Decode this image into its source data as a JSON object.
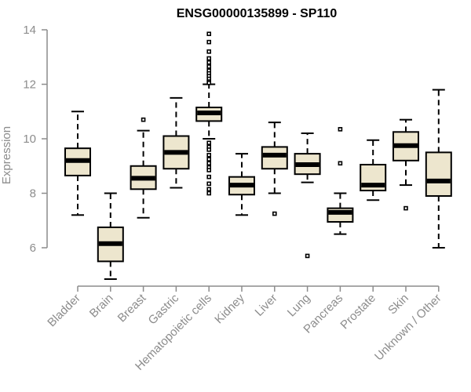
{
  "chart_data": {
    "type": "boxplot",
    "title": "ENSG00000135899 - SP110",
    "ylabel": "Expression",
    "xlabel": "",
    "ylim": [
      4.6,
      14.2
    ],
    "yticks": [
      6,
      8,
      10,
      12,
      14
    ],
    "colors": {
      "box_fill": "#ede6ce",
      "stroke": "#000000",
      "axis": "#8c8c8c"
    },
    "categories": [
      "Bladder",
      "Brain",
      "Breast",
      "Gastric",
      "Hematopoietic cells",
      "Kidney",
      "Liver",
      "Lung",
      "Pancreas",
      "Prostate",
      "Skin",
      "Unknown / Other"
    ],
    "boxes": [
      {
        "category": "Bladder",
        "whisker_low": 7.2,
        "q1": 8.65,
        "median": 9.2,
        "q3": 9.65,
        "whisker_high": 11.0,
        "outliers": []
      },
      {
        "category": "Brain",
        "whisker_low": 4.85,
        "q1": 5.5,
        "median": 6.15,
        "q3": 6.75,
        "whisker_high": 8.0,
        "outliers": []
      },
      {
        "category": "Breast",
        "whisker_low": 7.1,
        "q1": 8.15,
        "median": 8.55,
        "q3": 9.0,
        "whisker_high": 10.3,
        "outliers": [
          10.7
        ]
      },
      {
        "category": "Gastric",
        "whisker_low": 8.2,
        "q1": 8.9,
        "median": 9.5,
        "q3": 10.1,
        "whisker_high": 11.5,
        "outliers": []
      },
      {
        "category": "Hematopoietic cells",
        "whisker_low": 10.0,
        "q1": 10.65,
        "median": 10.95,
        "q3": 11.15,
        "whisker_high": 12.0,
        "outliers": [
          13.85,
          13.55,
          13.2,
          12.95,
          12.8,
          12.65,
          12.5,
          12.4,
          12.3,
          12.2,
          12.1,
          12.05,
          9.85,
          9.7,
          9.6,
          9.4,
          9.25,
          9.1,
          8.95,
          8.85,
          8.6,
          8.35,
          8.15,
          8.0
        ]
      },
      {
        "category": "Kidney",
        "whisker_low": 7.2,
        "q1": 7.95,
        "median": 8.3,
        "q3": 8.6,
        "whisker_high": 9.45,
        "outliers": []
      },
      {
        "category": "Liver",
        "whisker_low": 8.0,
        "q1": 8.9,
        "median": 9.4,
        "q3": 9.7,
        "whisker_high": 10.6,
        "outliers": [
          7.25
        ]
      },
      {
        "category": "Lung",
        "whisker_low": 8.4,
        "q1": 8.7,
        "median": 9.05,
        "q3": 9.45,
        "whisker_high": 10.2,
        "outliers": [
          5.7
        ]
      },
      {
        "category": "Pancreas",
        "whisker_low": 6.5,
        "q1": 6.95,
        "median": 7.3,
        "q3": 7.45,
        "whisker_high": 8.0,
        "outliers": [
          10.35,
          9.1
        ]
      },
      {
        "category": "Prostate",
        "whisker_low": 7.75,
        "q1": 8.1,
        "median": 8.3,
        "q3": 9.05,
        "whisker_high": 9.95,
        "outliers": []
      },
      {
        "category": "Skin",
        "whisker_low": 8.3,
        "q1": 9.2,
        "median": 9.75,
        "q3": 10.25,
        "whisker_high": 10.7,
        "outliers": [
          7.45
        ]
      },
      {
        "category": "Unknown / Other",
        "whisker_low": 6.0,
        "q1": 7.9,
        "median": 8.45,
        "q3": 9.5,
        "whisker_high": 11.8,
        "outliers": []
      }
    ],
    "grid": false,
    "legend": "none"
  }
}
